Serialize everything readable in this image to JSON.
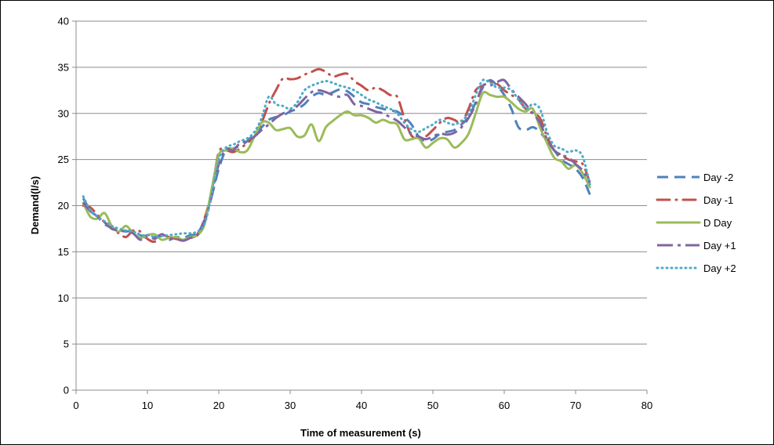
{
  "chart_data": {
    "type": "line",
    "xlabel": "Time of measurement (s)",
    "ylabel": "Demand(l/s)",
    "xlim": [
      0,
      80
    ],
    "ylim": [
      0,
      40
    ],
    "xticks": [
      0,
      10,
      20,
      30,
      40,
      50,
      60,
      70,
      80
    ],
    "yticks": [
      0,
      5,
      10,
      15,
      20,
      25,
      30,
      35,
      40
    ],
    "grid": "horizontal",
    "legend": "right",
    "x": [
      1,
      2,
      3,
      4,
      5,
      6,
      7,
      8,
      9,
      10,
      11,
      12,
      13,
      14,
      15,
      16,
      17,
      18,
      19,
      20,
      21,
      22,
      23,
      24,
      25,
      26,
      27,
      28,
      29,
      30,
      31,
      32,
      33,
      34,
      35,
      36,
      37,
      38,
      39,
      40,
      41,
      42,
      43,
      44,
      45,
      46,
      47,
      48,
      49,
      50,
      51,
      52,
      53,
      54,
      55,
      56,
      57,
      58,
      59,
      60,
      61,
      62,
      63,
      64,
      65,
      66,
      67,
      68,
      69,
      70,
      71,
      72
    ],
    "series": [
      {
        "name": "Day -2",
        "color": "#4f81bd",
        "dash": "dashed",
        "values": [
          20.8,
          19.5,
          18.8,
          18.0,
          17.6,
          17.4,
          17.2,
          17.3,
          16.8,
          16.5,
          16.6,
          16.8,
          16.3,
          16.6,
          16.5,
          16.8,
          17.0,
          18.5,
          21.0,
          24.0,
          26.0,
          26.2,
          26.5,
          27.0,
          27.8,
          28.5,
          29.3,
          29.6,
          29.8,
          30.2,
          30.5,
          31.0,
          31.8,
          32.2,
          32.0,
          32.3,
          32.6,
          32.4,
          31.8,
          31.2,
          31.0,
          30.7,
          30.5,
          30.3,
          30.2,
          29.6,
          28.8,
          27.5,
          27.0,
          27.2,
          27.8,
          28.0,
          28.2,
          28.8,
          29.6,
          31.2,
          32.8,
          33.6,
          33.0,
          32.0,
          30.5,
          28.5,
          28.2,
          28.5,
          28.0,
          27.0,
          26.0,
          25.0,
          24.5,
          24.0,
          23.0,
          21.2
        ]
      },
      {
        "name": "Day -1",
        "color": "#c0504d",
        "dash": "dashdot",
        "values": [
          20.0,
          19.8,
          19.0,
          18.2,
          17.5,
          17.0,
          16.6,
          17.3,
          17.2,
          16.4,
          16.1,
          16.8,
          16.6,
          16.4,
          16.3,
          16.5,
          16.9,
          18.6,
          21.5,
          25.8,
          26.0,
          25.8,
          26.2,
          26.8,
          27.5,
          29.0,
          31.0,
          32.5,
          33.8,
          33.7,
          33.8,
          34.2,
          34.5,
          34.8,
          34.5,
          34.0,
          34.2,
          34.3,
          33.5,
          33.0,
          32.5,
          32.8,
          32.5,
          32.0,
          31.8,
          29.5,
          27.6,
          27.3,
          27.5,
          28.2,
          29.0,
          29.5,
          29.3,
          29.0,
          30.5,
          32.5,
          33.0,
          33.4,
          33.2,
          32.5,
          32.0,
          31.5,
          30.5,
          30.0,
          29.5,
          27.5,
          26.0,
          25.5,
          25.0,
          24.8,
          24.5,
          22.5
        ]
      },
      {
        "name": "D Day",
        "color": "#9bbb59",
        "dash": "solid",
        "values": [
          20.3,
          18.8,
          18.6,
          19.2,
          17.8,
          17.2,
          17.8,
          17.0,
          16.5,
          16.8,
          16.9,
          16.3,
          16.5,
          16.6,
          16.3,
          16.6,
          16.8,
          18.0,
          21.8,
          25.5,
          26.0,
          26.2,
          25.8,
          26.0,
          27.5,
          29.0,
          29.0,
          28.2,
          28.3,
          28.4,
          27.5,
          27.6,
          28.8,
          27.0,
          28.5,
          29.2,
          29.8,
          30.2,
          29.8,
          29.8,
          29.5,
          29.0,
          29.3,
          29.0,
          28.8,
          27.2,
          27.2,
          27.3,
          26.3,
          26.8,
          27.3,
          27.2,
          26.3,
          26.8,
          27.8,
          30.0,
          32.2,
          32.0,
          31.8,
          31.8,
          31.2,
          30.5,
          30.2,
          30.5,
          28.5,
          26.8,
          25.2,
          24.8,
          24.0,
          24.4,
          23.5,
          22.0
        ]
      },
      {
        "name": "Day +1",
        "color": "#8064a2",
        "dash": "longdash",
        "values": [
          20.3,
          19.4,
          18.8,
          18.2,
          17.5,
          17.3,
          17.2,
          17.0,
          16.3,
          16.8,
          16.4,
          16.9,
          16.5,
          16.4,
          16.2,
          16.5,
          16.8,
          18.3,
          21.0,
          24.5,
          26.1,
          26.0,
          26.8,
          27.0,
          27.5,
          28.2,
          28.8,
          29.5,
          30.0,
          30.3,
          30.8,
          31.6,
          32.3,
          32.5,
          32.3,
          32.0,
          31.8,
          32.0,
          31.0,
          30.8,
          30.5,
          30.2,
          30.0,
          29.6,
          29.2,
          28.5,
          27.8,
          27.5,
          27.2,
          27.5,
          27.8,
          27.7,
          27.9,
          28.5,
          29.5,
          31.0,
          33.0,
          33.0,
          33.4,
          33.6,
          32.6,
          31.8,
          31.0,
          30.0,
          29.0,
          27.2,
          26.0,
          25.5,
          25.2,
          24.5,
          23.8,
          22.5
        ]
      },
      {
        "name": "Day +2",
        "color": "#4bacc6",
        "dash": "dotted",
        "values": [
          21.0,
          19.5,
          18.8,
          18.3,
          17.8,
          17.5,
          17.3,
          17.2,
          16.8,
          16.8,
          16.6,
          16.7,
          16.8,
          16.9,
          17.0,
          17.0,
          17.2,
          18.0,
          21.2,
          25.0,
          26.3,
          26.6,
          27.0,
          27.3,
          28.0,
          29.5,
          31.8,
          31.0,
          30.8,
          30.5,
          31.2,
          32.5,
          33.0,
          33.3,
          33.5,
          33.3,
          33.0,
          32.8,
          32.5,
          32.0,
          31.5,
          31.2,
          30.8,
          30.5,
          30.0,
          29.0,
          28.3,
          28.0,
          28.4,
          28.8,
          29.3,
          29.0,
          28.8,
          29.2,
          30.0,
          32.0,
          33.6,
          33.3,
          32.8,
          32.8,
          32.5,
          31.5,
          30.5,
          31.0,
          30.5,
          28.0,
          26.5,
          26.2,
          25.8,
          26.0,
          25.3,
          22.3
        ]
      }
    ]
  }
}
